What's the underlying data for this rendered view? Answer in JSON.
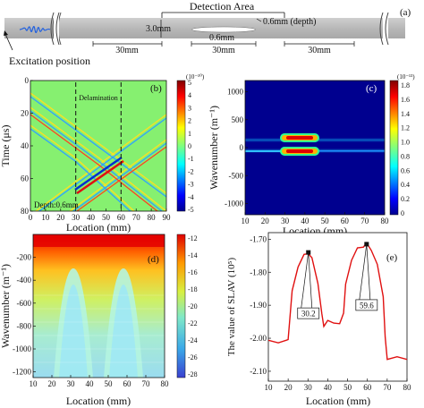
{
  "schematic": {
    "title": "Detection Area",
    "panel": "(a)",
    "dims": {
      "height": "3.0mm",
      "gap": "0.6mm",
      "depth": "0.6mm (depth)"
    },
    "spans": [
      "30mm",
      "30mm",
      "30mm"
    ],
    "excitation_label": "Excitation position"
  },
  "panel_b": {
    "label": "(b)",
    "colorbar_unit": "(10⁻¹⁰)",
    "colorbar_ticks": [
      "5",
      "4",
      "3",
      "2",
      "1",
      "0",
      "-1",
      "-2",
      "-3",
      "-4",
      "-5"
    ],
    "annotation": "Delamination",
    "depth_note": "Depth:0.6mm",
    "xlabel": "Location (mm)",
    "ylabel": "Time (μs)",
    "xticks": [
      "0",
      "10",
      "20",
      "30",
      "40",
      "50",
      "60",
      "70",
      "80",
      "90"
    ],
    "yticks": [
      "0",
      "20",
      "40",
      "60",
      "80"
    ]
  },
  "panel_c": {
    "label": "(c)",
    "colorbar_unit": "(10⁻¹³)",
    "colorbar_ticks": [
      "1.8",
      "1.6",
      "1.4",
      "1.2",
      "1.0",
      "0.8",
      "0.6",
      "0.4",
      "0.2",
      "0"
    ],
    "xlabel": "Location (mm)",
    "ylabel": "Wavenumber (m⁻¹)",
    "xticks": [
      "10",
      "20",
      "30",
      "40",
      "50",
      "60",
      "70",
      "80"
    ],
    "yticks": [
      "1000",
      "500",
      "0",
      "-500",
      "-1000"
    ]
  },
  "panel_d": {
    "label": "(d)",
    "colorbar_ticks": [
      "-12",
      "-14",
      "-16",
      "-18",
      "-20",
      "-22",
      "-24",
      "-26",
      "-28"
    ],
    "xlabel": "Location (mm)",
    "ylabel": "Wavenumber (m⁻¹)",
    "xticks": [
      "10",
      "20",
      "30",
      "40",
      "50",
      "60",
      "70",
      "80"
    ],
    "yticks": [
      "-200",
      "-400",
      "-600",
      "-800",
      "-1000",
      "-1200"
    ]
  },
  "panel_e": {
    "label": "(e)",
    "xlabel": "Location (mm)",
    "ylabel": "The value of SLAV (10⁵)",
    "xticks": [
      "10",
      "20",
      "30",
      "40",
      "50",
      "60",
      "70",
      "80"
    ],
    "yticks": [
      "-1.70",
      "-1.80",
      "-1.90",
      "-2.00",
      "-2.10"
    ],
    "peak_labels": [
      "30.2",
      "59.6"
    ]
  },
  "chart_data": [
    {
      "type": "heatmap",
      "panel": "(b)",
      "xlabel": "Location (mm)",
      "ylabel": "Time (μs)",
      "xlim": [
        0,
        90
      ],
      "ylim": [
        80,
        0
      ],
      "color_range": [
        -5,
        5
      ],
      "delamination_bounds": [
        30,
        60
      ]
    },
    {
      "type": "heatmap",
      "panel": "(c)",
      "xlabel": "Location (mm)",
      "ylabel": "Wavenumber (m⁻¹)",
      "xlim": [
        10,
        80
      ],
      "ylim": [
        -1200,
        1200
      ],
      "color_range": [
        0,
        1.8
      ]
    },
    {
      "type": "heatmap",
      "panel": "(d)",
      "xlabel": "Location (mm)",
      "ylabel": "Wavenumber (m⁻¹)",
      "xlim": [
        10,
        80
      ],
      "ylim": [
        -1250,
        0
      ],
      "color_range": [
        -28,
        -12
      ]
    },
    {
      "type": "line",
      "panel": "(e)",
      "xlabel": "Location (mm)",
      "ylabel": "The value of SLAV (10⁵)",
      "xlim": [
        10,
        80
      ],
      "ylim": [
        -2.13,
        -1.68
      ],
      "x": [
        10,
        15,
        19,
        20,
        22,
        25,
        28,
        30.2,
        32,
        35,
        37,
        38,
        40,
        43,
        46,
        48,
        49,
        52,
        55,
        58,
        59.6,
        62,
        65,
        68,
        69,
        70,
        75,
        80
      ],
      "y": [
        -2.01,
        -2.01,
        -2.01,
        -2.0,
        -1.86,
        -1.78,
        -1.75,
        -1.74,
        -1.76,
        -1.83,
        -1.93,
        -1.96,
        -1.95,
        -1.95,
        -1.96,
        -1.92,
        -1.84,
        -1.76,
        -1.73,
        -1.72,
        -1.715,
        -1.73,
        -1.78,
        -1.87,
        -2.0,
        -2.06,
        -2.06,
        -2.06
      ],
      "peaks": [
        {
          "x": 30.2,
          "y": -1.74
        },
        {
          "x": 59.6,
          "y": -1.715
        }
      ]
    }
  ]
}
